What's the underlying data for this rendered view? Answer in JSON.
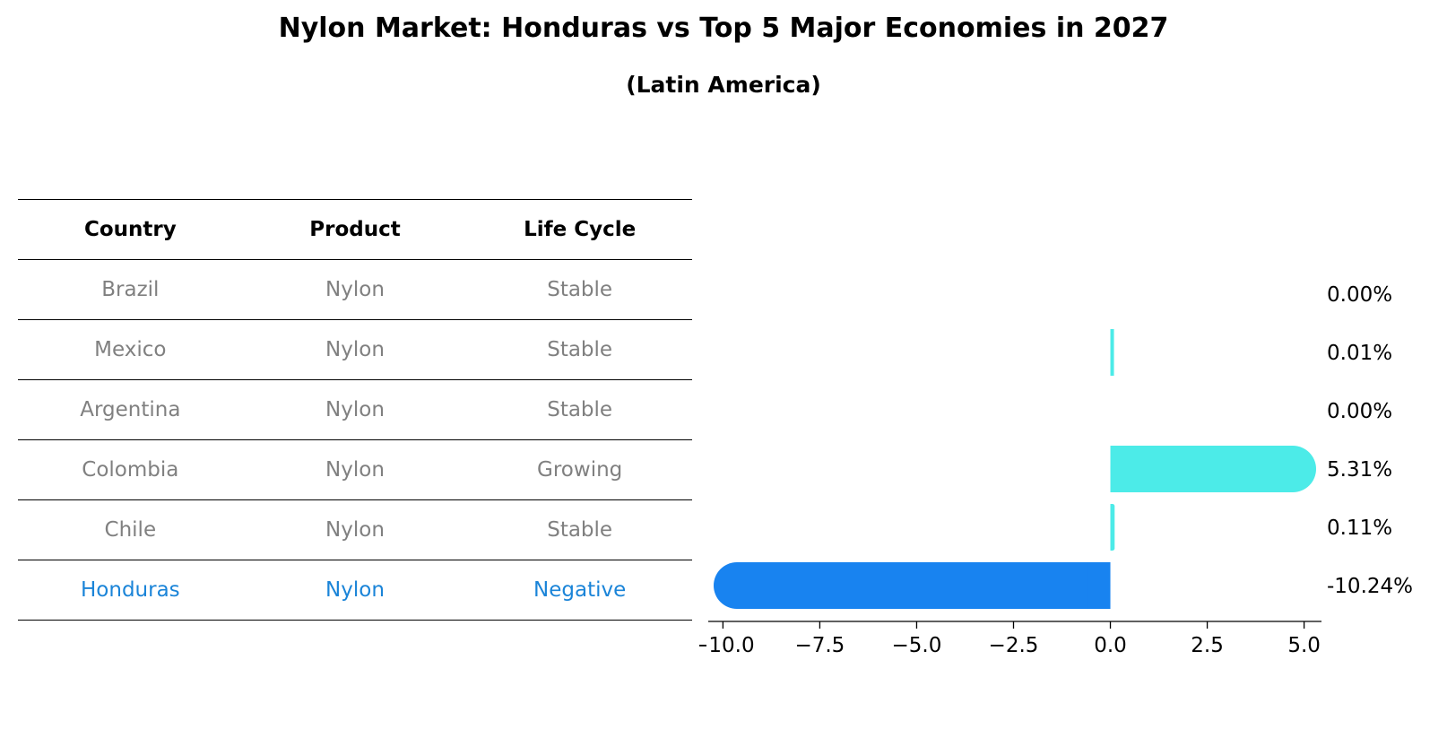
{
  "header": {
    "title": "Nylon Market: Honduras vs Top 5 Major Economies in 2027",
    "subtitle": "(Latin America)"
  },
  "table": {
    "columns": [
      "Country",
      "Product",
      "Life Cycle"
    ],
    "rows": [
      {
        "country": "Brazil",
        "product": "Nylon",
        "life_cycle": "Stable",
        "highlight": false
      },
      {
        "country": "Mexico",
        "product": "Nylon",
        "life_cycle": "Stable",
        "highlight": false
      },
      {
        "country": "Argentina",
        "product": "Nylon",
        "life_cycle": "Stable",
        "highlight": false
      },
      {
        "country": "Colombia",
        "product": "Nylon",
        "life_cycle": "Growing",
        "highlight": false
      },
      {
        "country": "Chile",
        "product": "Nylon",
        "life_cycle": "Stable",
        "highlight": false
      },
      {
        "country": "Honduras",
        "product": "Nylon",
        "life_cycle": "Negative",
        "highlight": true
      }
    ]
  },
  "colors": {
    "highlight_text": "#1a84d8",
    "muted_text": "#808080",
    "positive_bar": "#4cebe8",
    "negative_bar": "#1883f0"
  },
  "chart_data": {
    "type": "bar",
    "orientation": "horizontal",
    "categories": [
      "Brazil",
      "Mexico",
      "Argentina",
      "Colombia",
      "Chile",
      "Honduras"
    ],
    "values": [
      0.0,
      0.01,
      0.0,
      5.31,
      0.11,
      -10.24
    ],
    "value_labels": [
      "0.00%",
      "0.01%",
      "0.00%",
      "5.31%",
      "0.11%",
      "-10.24%"
    ],
    "xlim": [
      -10.24,
      5.31
    ],
    "xticks": [
      -10.0,
      -7.5,
      -5.0,
      -2.5,
      0.0,
      2.5,
      5.0
    ],
    "xtick_labels": [
      "−10.0",
      "−7.5",
      "−5.0",
      "−2.5",
      "0.0",
      "2.5",
      "5.0"
    ],
    "grid": false,
    "title": "",
    "xlabel": "",
    "ylabel": ""
  }
}
